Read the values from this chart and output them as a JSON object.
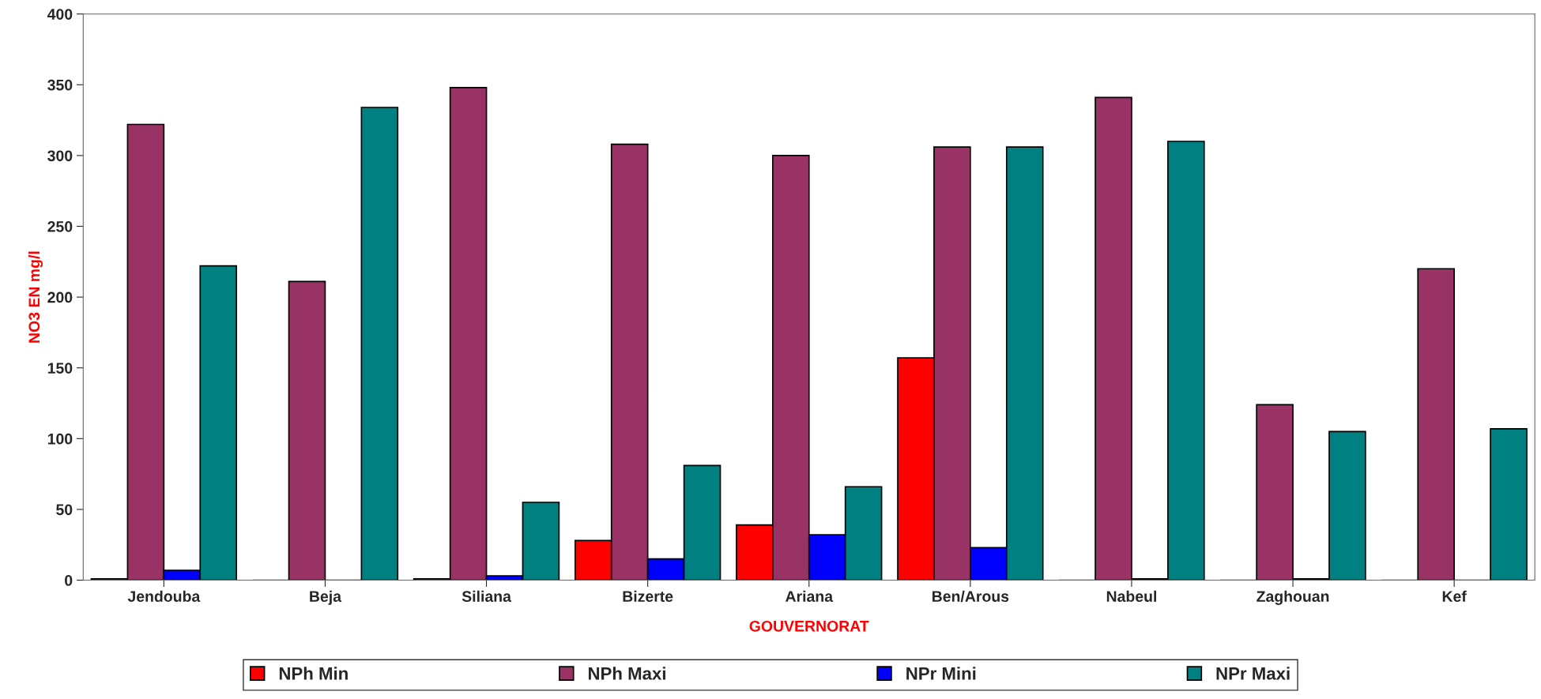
{
  "chart_data": {
    "type": "bar",
    "xlabel": "GOUVERNORAT",
    "ylabel": "NO3 EN mg/l",
    "categories": [
      "Jendouba",
      "Beja",
      "Siliana",
      "Bizerte",
      "Ariana",
      "Ben/Arous",
      "Nabeul",
      "Zaghouan",
      "Kef"
    ],
    "series": [
      {
        "name": "NPh Min",
        "color": "#ff0000",
        "values": [
          1,
          0,
          1,
          28,
          39,
          157,
          0,
          0,
          0
        ]
      },
      {
        "name": "NPh Maxi",
        "color": "#993366",
        "values": [
          322,
          211,
          348,
          308,
          300,
          306,
          341,
          124,
          220
        ]
      },
      {
        "name": "NPr Mini",
        "color": "#0000ff",
        "values": [
          7,
          0,
          3,
          15,
          32,
          23,
          1,
          1,
          0
        ]
      },
      {
        "name": "NPr Maxi",
        "color": "#008080",
        "values": [
          222,
          334,
          55,
          81,
          66,
          306,
          310,
          105,
          107
        ]
      }
    ],
    "ylim": [
      0,
      400
    ],
    "yticks": [
      0,
      50,
      100,
      150,
      200,
      250,
      300,
      350,
      400
    ],
    "grid": false,
    "legend": "bottom"
  }
}
